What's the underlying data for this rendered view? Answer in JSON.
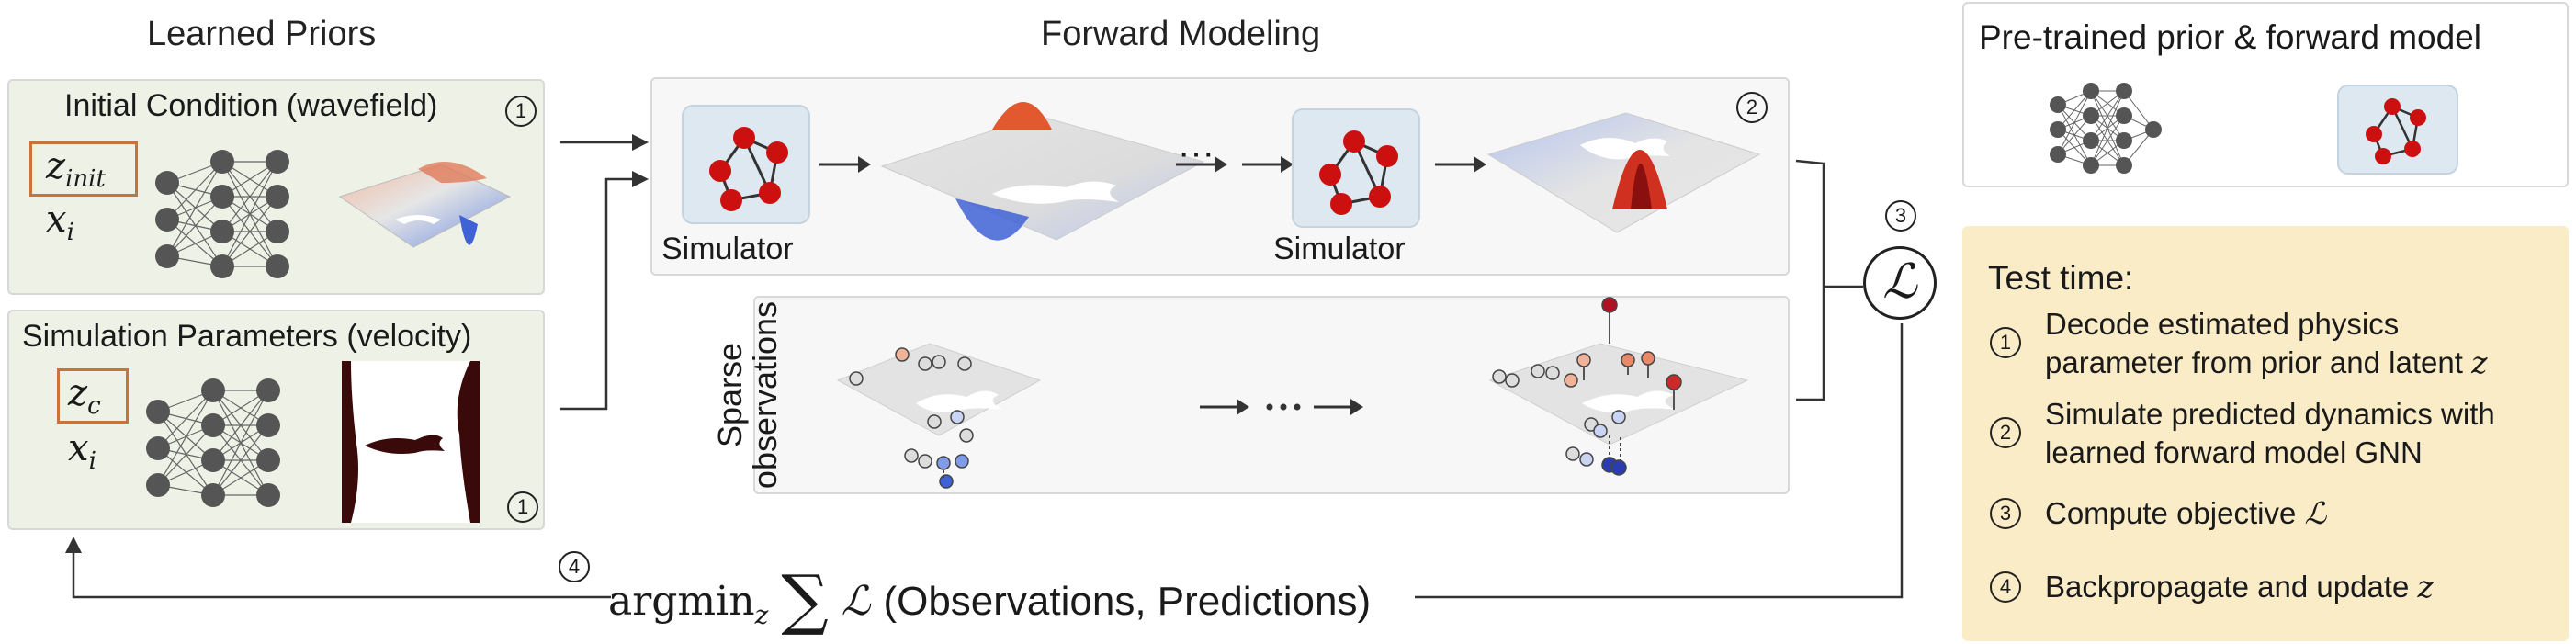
{
  "headings": {
    "learned_priors": "Learned Priors",
    "forward_modeling": "Forward Modeling",
    "pretrained": "Pre-trained prior & forward model"
  },
  "initial_condition": {
    "title": "Initial Condition (wavefield)",
    "latent": "z",
    "latent_sub": "init",
    "coord": "x",
    "coord_sub": "i",
    "step": "1"
  },
  "sim_params": {
    "title": "Simulation Parameters (velocity)",
    "latent": "z",
    "latent_sub": "c",
    "coord": "x",
    "coord_sub": "i",
    "step": "1"
  },
  "forward": {
    "simulator_label_1": "Simulator",
    "simulator_label_2": "Simulator",
    "ellipsis": "···",
    "step": "2",
    "sparse_label_line1": "Sparse",
    "sparse_label_line2": "observations"
  },
  "loss": {
    "symbol": "ℒ",
    "step": "3"
  },
  "objective": {
    "step": "4",
    "text": "argmin",
    "sub": "z",
    "sum": "∑",
    "loss": "ℒ",
    "args": "(Observations, Predictions)"
  },
  "test_time": {
    "title": "Test time:",
    "items": [
      {
        "num": "1",
        "line1": "Decode estimated physics",
        "line2": "parameter from prior and latent",
        "var": "z"
      },
      {
        "num": "2",
        "line1": "Simulate predicted dynamics with",
        "line2": "learned forward model GNN"
      },
      {
        "num": "3",
        "line1": "Compute objective",
        "var": "ℒ"
      },
      {
        "num": "4",
        "line1": "Backpropagate and update",
        "var": "z"
      }
    ]
  },
  "colors": {
    "node_red": "#cc1010",
    "nn_node": "#555555",
    "green_panel": "#eef2e6",
    "yellow_panel": "#fbecc8",
    "latent_border": "#c8733a"
  }
}
